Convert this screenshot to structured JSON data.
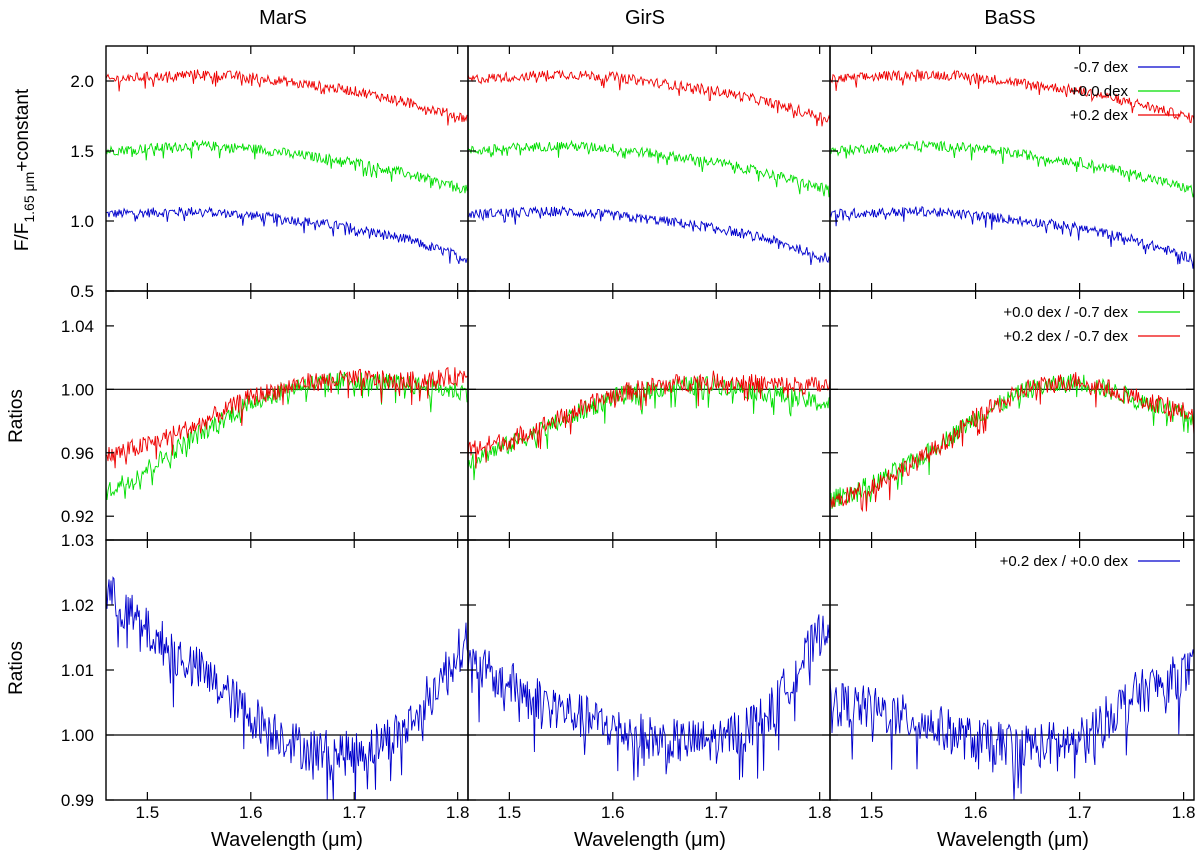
{
  "figure": {
    "columns": [
      "MarS",
      "GirS",
      "BaSS"
    ],
    "xlabel_main": "Wavelength (",
    "xlabel_mu": "μ",
    "xlabel_unit": "m)",
    "row_ylabels": {
      "row1_main": "F/F",
      "row1_sub": "1.65 μm",
      "row1_tail": "+constant",
      "row2": "Ratios",
      "row3": "Ratios"
    }
  },
  "colors": {
    "blue": "#0000cc",
    "green": "#00dd00",
    "red": "#ee0000"
  },
  "chart_data": [
    {
      "type": "line",
      "row": 1,
      "xlim": [
        1.46,
        1.81
      ],
      "ylim": [
        0.5,
        2.25
      ],
      "xticks": [
        1.5,
        1.6,
        1.7,
        1.8
      ],
      "yticks": [
        0.5,
        1.0,
        1.5,
        2.0
      ],
      "ytick_labels": [
        "0.5",
        "1.0",
        "1.5",
        "2.0"
      ],
      "legend": {
        "panel": "BaSS",
        "placement": "top-right",
        "entries": [
          {
            "label": "-0.7 dex",
            "color": "#0000cc"
          },
          {
            "label": "+0.0 dex",
            "color": "#00dd00"
          },
          {
            "label": "+0.2 dex",
            "color": "#ee0000"
          }
        ]
      },
      "series": [
        {
          "color": "#0000cc",
          "x": [
            1.46,
            1.5,
            1.55,
            1.6,
            1.65,
            1.7,
            1.75,
            1.81
          ],
          "y": [
            1.05,
            1.06,
            1.07,
            1.04,
            1.0,
            0.95,
            0.87,
            0.73
          ]
        },
        {
          "color": "#00dd00",
          "x": [
            1.46,
            1.5,
            1.55,
            1.6,
            1.65,
            1.7,
            1.75,
            1.81
          ],
          "y": [
            1.5,
            1.52,
            1.54,
            1.52,
            1.47,
            1.42,
            1.34,
            1.22
          ]
        },
        {
          "color": "#ee0000",
          "x": [
            1.46,
            1.5,
            1.55,
            1.6,
            1.65,
            1.7,
            1.75,
            1.81
          ],
          "y": [
            2.01,
            2.03,
            2.05,
            2.03,
            1.98,
            1.93,
            1.85,
            1.73
          ]
        }
      ]
    },
    {
      "type": "line",
      "row": 2,
      "xlim": [
        1.46,
        1.81
      ],
      "ylim": [
        0.905,
        1.062
      ],
      "xticks": [
        1.5,
        1.6,
        1.7,
        1.8
      ],
      "yticks": [
        0.92,
        0.96,
        1.0,
        1.04
      ],
      "ytick_labels": [
        "0.92",
        "0.96",
        "1.00",
        "1.04"
      ],
      "reference_line": 1.0,
      "legend": {
        "panel": "BaSS",
        "placement": "top-right",
        "entries": [
          {
            "label": "+0.0 dex / -0.7 dex",
            "color": "#00dd00"
          },
          {
            "label": "+0.2 dex / -0.7 dex",
            "color": "#ee0000"
          }
        ]
      },
      "panels": [
        {
          "name": "MarS",
          "series": [
            {
              "color": "#00dd00",
              "x": [
                1.46,
                1.5,
                1.55,
                1.6,
                1.65,
                1.7,
                1.75,
                1.81
              ],
              "y": [
                0.935,
                0.95,
                0.972,
                0.992,
                1.003,
                1.006,
                1.003,
                0.998
              ]
            },
            {
              "color": "#ee0000",
              "x": [
                1.46,
                1.5,
                1.55,
                1.6,
                1.65,
                1.7,
                1.75,
                1.81
              ],
              "y": [
                0.958,
                0.965,
                0.978,
                0.995,
                1.004,
                1.007,
                1.005,
                1.009
              ]
            }
          ]
        },
        {
          "name": "GirS",
          "series": [
            {
              "color": "#00dd00",
              "x": [
                1.46,
                1.5,
                1.55,
                1.6,
                1.65,
                1.7,
                1.75,
                1.81
              ],
              "y": [
                0.955,
                0.965,
                0.98,
                0.995,
                1.001,
                1.003,
                0.998,
                0.99
              ]
            },
            {
              "color": "#ee0000",
              "x": [
                1.46,
                1.5,
                1.55,
                1.6,
                1.65,
                1.7,
                1.75,
                1.81
              ],
              "y": [
                0.962,
                0.968,
                0.982,
                0.997,
                1.003,
                1.006,
                1.003,
                1.002
              ]
            }
          ]
        },
        {
          "name": "BaSS",
          "series": [
            {
              "color": "#00dd00",
              "x": [
                1.46,
                1.5,
                1.55,
                1.6,
                1.65,
                1.7,
                1.75,
                1.81
              ],
              "y": [
                0.93,
                0.94,
                0.958,
                0.982,
                1.0,
                1.005,
                0.995,
                0.982
              ]
            },
            {
              "color": "#ee0000",
              "x": [
                1.46,
                1.5,
                1.55,
                1.6,
                1.65,
                1.7,
                1.75,
                1.81
              ],
              "y": [
                0.928,
                0.939,
                0.957,
                0.982,
                1.001,
                1.006,
                0.996,
                0.984
              ]
            }
          ]
        }
      ]
    },
    {
      "type": "line",
      "row": 3,
      "xlim": [
        1.46,
        1.81
      ],
      "ylim": [
        0.99,
        1.03
      ],
      "xticks": [
        1.5,
        1.6,
        1.7,
        1.8
      ],
      "xtick_labels": [
        "1.5",
        "1.6",
        "1.7",
        "1.8"
      ],
      "yticks": [
        0.99,
        1.0,
        1.01,
        1.02,
        1.03
      ],
      "ytick_labels": [
        "0.99",
        "1.00",
        "1.01",
        "1.02",
        "1.03"
      ],
      "reference_line": 1.0,
      "legend": {
        "panel": "BaSS",
        "placement": "top-right",
        "entries": [
          {
            "label": "+0.2 dex / +0.0 dex",
            "color": "#0000cc"
          }
        ]
      },
      "panels": [
        {
          "name": "MarS",
          "series": [
            {
              "color": "#0000cc",
              "x": [
                1.46,
                1.5,
                1.55,
                1.6,
                1.65,
                1.7,
                1.75,
                1.81
              ],
              "y": [
                1.022,
                1.016,
                1.01,
                1.003,
                0.998,
                0.997,
                1.001,
                1.015
              ]
            }
          ]
        },
        {
          "name": "GirS",
          "series": [
            {
              "color": "#0000cc",
              "x": [
                1.46,
                1.5,
                1.55,
                1.6,
                1.65,
                1.7,
                1.75,
                1.81
              ],
              "y": [
                1.011,
                1.008,
                1.004,
                1.001,
                0.999,
                0.999,
                1.003,
                1.018
              ]
            }
          ]
        },
        {
          "name": "BaSS",
          "series": [
            {
              "color": "#0000cc",
              "x": [
                1.46,
                1.5,
                1.55,
                1.6,
                1.65,
                1.7,
                1.75,
                1.81
              ],
              "y": [
                1.005,
                1.004,
                1.002,
                0.999,
                0.9985,
                0.999,
                1.006,
                1.01
              ]
            }
          ]
        }
      ]
    }
  ]
}
